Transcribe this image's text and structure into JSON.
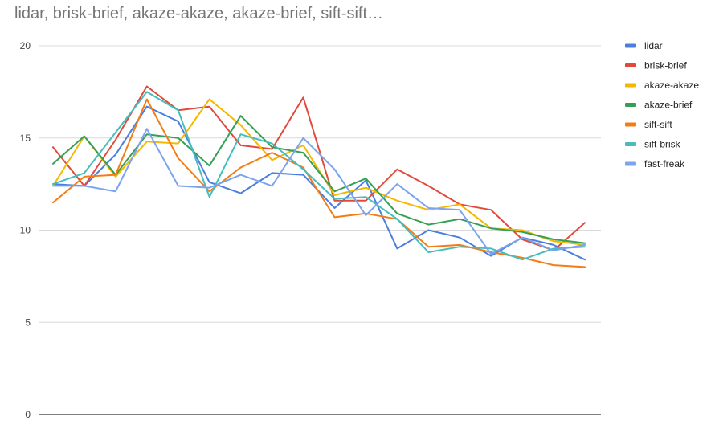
{
  "chart_data": {
    "type": "line",
    "title": "lidar, brisk-brief, akaze-akaze, akaze-brief, sift-sift…",
    "xlabel": "",
    "ylabel": "",
    "ylim": [
      0,
      20
    ],
    "yticks": [
      0,
      5,
      10,
      15,
      20
    ],
    "grid": true,
    "legend_position": "right",
    "x": [
      1,
      2,
      3,
      4,
      5,
      6,
      7,
      8,
      9,
      10,
      11,
      12,
      13,
      14,
      15,
      16,
      17,
      18
    ],
    "series": [
      {
        "name": "lidar",
        "color": "#4a7fe0",
        "values": [
          12.5,
          12.4,
          14.1,
          16.7,
          15.9,
          12.6,
          12.0,
          13.1,
          13.0,
          11.2,
          12.7,
          9.0,
          10.0,
          9.6,
          8.6,
          9.6,
          9.2,
          8.4
        ]
      },
      {
        "name": "brisk-brief",
        "color": "#e04a3a",
        "values": [
          14.5,
          12.4,
          14.9,
          17.8,
          16.5,
          16.7,
          14.6,
          14.4,
          17.2,
          11.6,
          11.6,
          13.3,
          12.4,
          11.4,
          11.1,
          9.5,
          8.9,
          10.4
        ]
      },
      {
        "name": "akaze-akaze",
        "color": "#f5b800",
        "values": [
          12.4,
          15.1,
          12.9,
          14.8,
          14.7,
          17.1,
          15.7,
          13.8,
          14.6,
          11.9,
          12.3,
          11.6,
          11.1,
          11.4,
          10.1,
          10.0,
          9.4,
          9.2
        ]
      },
      {
        "name": "akaze-brief",
        "color": "#35a055",
        "values": [
          13.6,
          15.1,
          13.0,
          15.2,
          15.0,
          13.5,
          16.2,
          14.5,
          14.2,
          12.1,
          12.8,
          10.9,
          10.3,
          10.6,
          10.1,
          9.9,
          9.5,
          9.3
        ]
      },
      {
        "name": "sift-sift",
        "color": "#f57c14",
        "values": [
          11.5,
          12.9,
          13.0,
          17.1,
          13.9,
          12.1,
          13.4,
          14.2,
          13.4,
          10.7,
          10.9,
          10.6,
          9.1,
          9.2,
          8.8,
          8.5,
          8.1,
          8.0
        ]
      },
      {
        "name": "sift-brisk",
        "color": "#45bdbd",
        "values": [
          12.5,
          13.1,
          15.3,
          17.5,
          16.5,
          11.8,
          15.2,
          14.7,
          13.3,
          11.7,
          11.8,
          10.6,
          8.8,
          9.1,
          9.0,
          8.4,
          9.0,
          9.1
        ]
      },
      {
        "name": "fast-freak",
        "color": "#7ba3ee",
        "values": [
          12.4,
          12.4,
          12.1,
          15.5,
          12.4,
          12.3,
          13.0,
          12.4,
          15.0,
          13.3,
          10.8,
          12.5,
          11.2,
          11.1,
          8.7,
          9.6,
          8.9,
          9.2
        ]
      }
    ]
  }
}
